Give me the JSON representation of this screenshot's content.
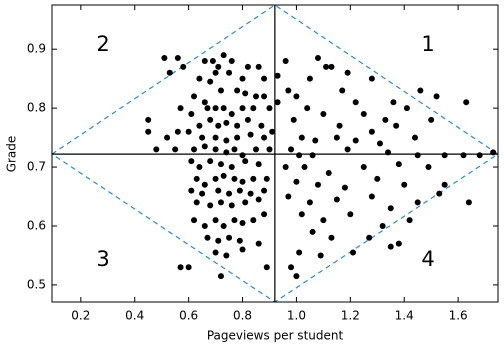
{
  "chart_data": {
    "type": "scatter",
    "xlabel": "Pageviews per student",
    "ylabel": "Grade",
    "xlim": [
      0.093,
      1.748
    ],
    "ylim": [
      0.471,
      0.975
    ],
    "xticks": [
      0.2,
      0.4,
      0.6,
      0.8,
      {
        "value": 1,
        "label": "1.0"
      },
      1.2,
      1.4,
      1.6
    ],
    "yticks": [
      0.5,
      0.6,
      0.7,
      0.8,
      0.9
    ],
    "reference_lines": {
      "x": 0.92,
      "y": 0.722
    },
    "diamond_color": "#2a8bd6",
    "quadrant_labels": [
      "1",
      "2",
      "3",
      "4"
    ],
    "color": "#000000",
    "x": [
      0.51,
      0.56,
      0.53,
      0.58,
      0.64,
      0.66,
      0.69,
      0.73,
      0.76,
      0.71,
      0.7,
      0.68,
      0.75,
      0.8,
      0.82,
      0.86,
      0.88,
      0.93,
      0.62,
      0.66,
      0.72,
      0.78,
      0.81,
      0.85,
      0.88,
      0.57,
      0.61,
      0.67,
      0.7,
      0.73,
      0.76,
      0.8,
      0.84,
      0.9,
      0.93,
      0.64,
      0.68,
      0.71,
      0.74,
      0.78,
      0.82,
      0.87,
      0.45,
      0.45,
      0.52,
      0.56,
      0.6,
      0.65,
      0.7,
      0.74,
      0.78,
      0.83,
      0.88,
      0.91,
      0.48,
      0.55,
      0.62,
      0.66,
      0.7,
      0.74,
      0.77,
      0.8,
      0.85,
      0.9,
      0.61,
      0.64,
      0.68,
      0.72,
      0.76,
      0.81,
      0.86,
      0.63,
      0.66,
      0.7,
      0.73,
      0.77,
      0.8,
      0.84,
      0.89,
      0.61,
      0.65,
      0.71,
      0.75,
      0.79,
      0.83,
      0.88,
      0.63,
      0.68,
      0.72,
      0.76,
      0.81,
      0.86,
      0.62,
      0.66,
      0.7,
      0.73,
      0.77,
      0.8,
      0.84,
      0.88,
      0.67,
      0.71,
      0.75,
      0.79,
      0.86,
      0.7,
      0.74,
      0.8,
      0.57,
      0.6,
      0.72,
      0.89,
      0.96,
      1.08,
      1.11,
      1.13,
      1.19,
      1.05,
      1.28,
      0.97,
      1.0,
      1.17,
      1.22,
      1.36,
      1.46,
      1.52,
      1.63,
      1.04,
      1.1,
      1.25,
      1.33,
      1.41,
      0.99,
      1.16,
      1.28,
      1.37,
      1.5,
      1.02,
      1.07,
      1.15,
      1.22,
      1.31,
      1.44,
      0.98,
      1.01,
      1.06,
      1.19,
      1.34,
      1.45,
      1.55,
      1.62,
      1.68,
      1.73,
      0.96,
      1.03,
      1.12,
      1.25,
      1.38,
      1.49,
      1.0,
      1.08,
      1.18,
      1.3,
      1.4,
      1.55,
      0.97,
      1.05,
      1.15,
      1.28,
      1.35,
      1.45,
      1.53,
      1.64,
      1.02,
      1.1,
      1.2,
      1.32,
      1.42,
      1.06,
      1.13,
      1.27,
      1.38,
      1.01,
      1.09,
      1.21,
      0.98,
      1.0,
      1.35
    ],
    "values": [
      0.885,
      0.885,
      0.86,
      0.87,
      0.85,
      0.88,
      0.88,
      0.89,
      0.88,
      0.87,
      0.86,
      0.845,
      0.86,
      0.85,
      0.87,
      0.87,
      0.85,
      0.855,
      0.82,
      0.81,
      0.83,
      0.83,
      0.825,
      0.82,
      0.82,
      0.8,
      0.79,
      0.8,
      0.8,
      0.8,
      0.79,
      0.8,
      0.8,
      0.8,
      0.81,
      0.77,
      0.78,
      0.77,
      0.775,
      0.77,
      0.78,
      0.77,
      0.78,
      0.76,
      0.75,
      0.76,
      0.76,
      0.75,
      0.75,
      0.745,
      0.75,
      0.755,
      0.75,
      0.76,
      0.73,
      0.73,
      0.73,
      0.735,
      0.73,
      0.725,
      0.73,
      0.72,
      0.73,
      0.73,
      0.71,
      0.7,
      0.71,
      0.705,
      0.7,
      0.71,
      0.705,
      0.68,
      0.67,
      0.68,
      0.685,
      0.68,
      0.675,
      0.68,
      0.68,
      0.66,
      0.655,
      0.66,
      0.655,
      0.66,
      0.655,
      0.66,
      0.64,
      0.635,
      0.64,
      0.635,
      0.64,
      0.645,
      0.61,
      0.6,
      0.61,
      0.6,
      0.61,
      0.605,
      0.61,
      0.62,
      0.58,
      0.575,
      0.58,
      0.575,
      0.57,
      0.555,
      0.55,
      0.56,
      0.53,
      0.53,
      0.515,
      0.53,
      0.88,
      0.885,
      0.87,
      0.87,
      0.86,
      0.85,
      0.85,
      0.83,
      0.82,
      0.83,
      0.81,
      0.81,
      0.83,
      0.82,
      0.81,
      0.8,
      0.79,
      0.79,
      0.78,
      0.8,
      0.78,
      0.77,
      0.76,
      0.77,
      0.78,
      0.75,
      0.745,
      0.75,
      0.745,
      0.74,
      0.75,
      0.73,
      0.72,
      0.72,
      0.73,
      0.725,
      0.72,
      0.72,
      0.72,
      0.72,
      0.725,
      0.7,
      0.7,
      0.69,
      0.7,
      0.705,
      0.7,
      0.675,
      0.67,
      0.665,
      0.68,
      0.67,
      0.67,
      0.65,
      0.64,
      0.645,
      0.65,
      0.63,
      0.64,
      0.655,
      0.64,
      0.62,
      0.61,
      0.62,
      0.6,
      0.61,
      0.59,
      0.58,
      0.58,
      0.57,
      0.555,
      0.55,
      0.555,
      0.53,
      0.515,
      0.565
    ]
  }
}
